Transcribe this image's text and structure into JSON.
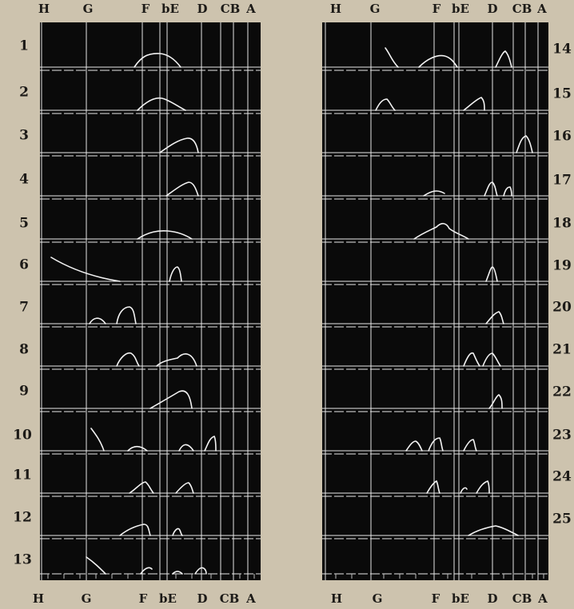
{
  "spectral_lines": [
    {
      "key": "H",
      "label": "H"
    },
    {
      "key": "G",
      "label": "G"
    },
    {
      "key": "F",
      "label": "F"
    },
    {
      "key": "bE",
      "label": "bE"
    },
    {
      "key": "D",
      "label": "D"
    },
    {
      "key": "CB",
      "label": "CB"
    },
    {
      "key": "A",
      "label": "A"
    }
  ],
  "left_panel": {
    "rows": [
      {
        "label": "1"
      },
      {
        "label": "2"
      },
      {
        "label": "3"
      },
      {
        "label": "4"
      },
      {
        "label": "5"
      },
      {
        "label": "6"
      },
      {
        "label": "7"
      },
      {
        "label": "8"
      },
      {
        "label": "9"
      },
      {
        "label": "10"
      },
      {
        "label": "11"
      },
      {
        "label": "12"
      },
      {
        "label": "13"
      }
    ]
  },
  "right_panel": {
    "rows": [
      {
        "label": "14"
      },
      {
        "label": "15"
      },
      {
        "label": "16"
      },
      {
        "label": "17"
      },
      {
        "label": "18"
      },
      {
        "label": "19"
      },
      {
        "label": "20"
      },
      {
        "label": "21"
      },
      {
        "label": "22"
      },
      {
        "label": "23"
      },
      {
        "label": "24"
      },
      {
        "label": "25"
      }
    ]
  },
  "colors": {
    "panel": "#0a0a0a",
    "grid": "#e8e8e8",
    "background": "#cdc3ae",
    "text": "#1c1a17"
  }
}
